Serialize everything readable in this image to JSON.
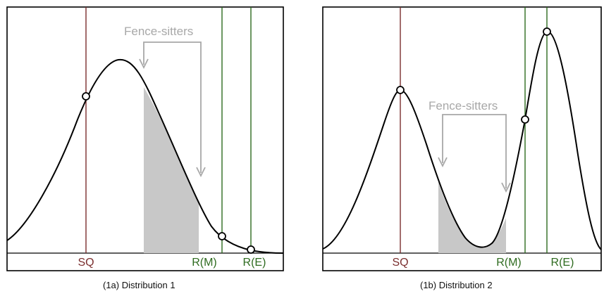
{
  "panels": [
    {
      "caption": "(1a) Distribution 1",
      "annotation": "Fence-sitters",
      "labels": {
        "sq": "SQ",
        "rm": "R(M)",
        "re": "R(E)"
      }
    },
    {
      "caption": "(1b) Distribution 2",
      "annotation": "Fence-sitters",
      "labels": {
        "sq": "SQ",
        "rm": "R(M)",
        "re": "R(E)"
      }
    }
  ],
  "colors": {
    "curve": "#000000",
    "sq_line": "#7a2e2e",
    "r_line": "#2e6b1f",
    "fence_fill": "#c8c8c8",
    "annotation": "#a8a8a8"
  }
}
